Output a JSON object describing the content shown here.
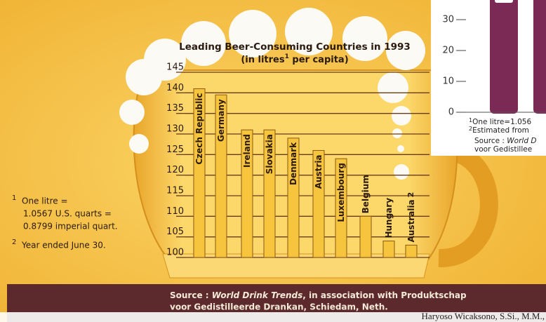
{
  "chart_data": {
    "type": "bar",
    "title": "Leading Beer-Consuming Countries in 1993",
    "subtitle": {
      "before": "(in litres",
      "mark": "1",
      "after": " per capita)"
    },
    "categories": [
      "Czech Republic",
      "Germany",
      "Ireland",
      "Slovakia",
      "Denmark",
      "Austria",
      "Luxembourg",
      "Belgium",
      "Hungary",
      "Australia"
    ],
    "category_marks": [
      null,
      null,
      null,
      null,
      null,
      null,
      null,
      null,
      null,
      "2"
    ],
    "values": [
      141,
      139.5,
      131,
      131,
      129,
      126,
      124,
      110,
      104,
      103
    ],
    "color": "#f7c43e",
    "ylim": [
      100,
      145
    ],
    "yticks": [
      100,
      105,
      110,
      115,
      120,
      125,
      130,
      135,
      140,
      145
    ],
    "grid": true,
    "footnotes": [
      {
        "mark": "1",
        "lines": [
          "One litre =",
          "1.0567 U.S. quarts =",
          "0.8799 imperial quart."
        ]
      },
      {
        "mark": "2",
        "lines": [
          "Year ended June 30."
        ]
      }
    ],
    "source": {
      "prefix": "Source : ",
      "work": "World Drink Trends",
      "rest": ", in association with Produktschap",
      "line2": "voor Gedistilleerde Drankan, Schiedam, Neth."
    },
    "credit": "Haryoso Wicaksono, S.Si., M.M.,",
    "inset": {
      "ylim": [
        0,
        36
      ],
      "yticks": [
        0,
        10,
        20,
        30
      ],
      "notes": [
        {
          "mark": "1",
          "text": "One litre=1.056"
        },
        {
          "mark": "2",
          "text": "Estimated from"
        }
      ],
      "source": {
        "prefix": "Source : ",
        "work": "World D",
        "line2": "voor Gedistillee"
      }
    }
  }
}
